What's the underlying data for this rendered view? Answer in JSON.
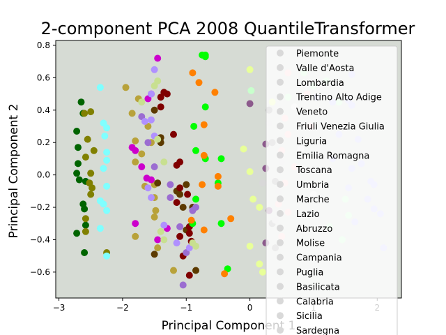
{
  "chart_data": {
    "type": "scatter",
    "title": "2-component PCA 2008 QuantileTransformer",
    "xlabel": "Principal Component 1",
    "ylabel": "Principal Component 2",
    "xlim": [
      -3.05,
      2.38
    ],
    "ylim": [
      -0.76,
      0.83
    ],
    "xticks": [
      -3,
      -2,
      -1,
      0,
      1,
      2
    ],
    "yticks": [
      -0.6,
      -0.4,
      -0.2,
      0.0,
      0.2,
      0.4,
      0.6,
      0.8
    ],
    "ytick_labels": [
      "−0.6",
      "−0.4",
      "−0.2",
      "0.0",
      "0.2",
      "0.4",
      "0.6",
      "0.8"
    ],
    "xtick_labels": [
      "−3",
      "−2",
      "−1",
      "0",
      "1",
      "2"
    ],
    "plot_background": "#d6dbd4",
    "legend_position": "right",
    "series": [
      {
        "name": "Piemonte",
        "color": "#006400",
        "points": [
          [
            -2.72,
            0.27
          ],
          [
            -2.7,
            0.17
          ],
          [
            -2.65,
            0.45
          ],
          [
            -2.62,
            0.38
          ],
          [
            -2.7,
            0.07
          ],
          [
            -2.72,
            0.01
          ],
          [
            -2.68,
            -0.03
          ],
          [
            -2.58,
            -0.04
          ],
          [
            -2.6,
            -0.21
          ],
          [
            -2.62,
            -0.18
          ],
          [
            -2.58,
            -0.31
          ],
          [
            -2.72,
            -0.36
          ],
          [
            -2.6,
            -0.48
          ]
        ]
      },
      {
        "name": "Valle d'Aosta",
        "color": "#808000",
        "points": [
          [
            -2.6,
            0.38
          ],
          [
            -2.5,
            0.39
          ],
          [
            -2.55,
            0.22
          ],
          [
            -2.45,
            0.15
          ],
          [
            -2.58,
            0.11
          ],
          [
            -2.5,
            0.01
          ],
          [
            -2.52,
            -0.05
          ],
          [
            -2.48,
            -0.08
          ],
          [
            -2.5,
            -0.12
          ],
          [
            -2.58,
            -0.27
          ],
          [
            -2.58,
            -0.35
          ],
          [
            -2.25,
            -0.48
          ]
        ]
      },
      {
        "name": "Lombardia",
        "color": "#b8a23a",
        "points": [
          [
            -1.95,
            0.54
          ],
          [
            -1.75,
            0.47
          ],
          [
            -1.85,
            0.38
          ],
          [
            -1.8,
            0.21
          ],
          [
            -1.7,
            0.13
          ],
          [
            -1.8,
            0.08
          ],
          [
            -1.65,
            -0.07
          ],
          [
            -1.5,
            -0.06
          ],
          [
            -1.5,
            -0.14
          ],
          [
            -1.48,
            -0.22
          ],
          [
            -1.5,
            -0.26
          ],
          [
            -1.45,
            -0.45
          ],
          [
            -1.8,
            -0.38
          ],
          [
            -1.2,
            -0.59
          ],
          [
            -1.6,
            0.3
          ],
          [
            -1.55,
            0.2
          ]
        ]
      },
      {
        "name": "Trentino Alto Adige",
        "color": "#5c3a00",
        "points": [
          [
            -1.5,
            0.4
          ],
          [
            -1.4,
            0.23
          ],
          [
            -1.4,
            0.2
          ],
          [
            -1.45,
            -0.05
          ],
          [
            -1.15,
            -0.1
          ],
          [
            -1.1,
            -0.12
          ],
          [
            -1.05,
            -0.2
          ],
          [
            -1.0,
            -0.34
          ],
          [
            -0.85,
            -0.59
          ],
          [
            -0.9,
            -0.2
          ],
          [
            -1.0,
            -0.06
          ],
          [
            -1.5,
            -0.49
          ]
        ]
      },
      {
        "name": "Veneto",
        "color": "#7f0000",
        "points": [
          [
            -1.4,
            0.48
          ],
          [
            -1.35,
            0.51
          ],
          [
            -1.3,
            0.5
          ],
          [
            -1.4,
            0.42
          ],
          [
            -1.2,
            0.25
          ],
          [
            -1.1,
            0.08
          ],
          [
            -1.15,
            0.06
          ],
          [
            -1.1,
            -0.08
          ],
          [
            -1.15,
            -0.17
          ],
          [
            -0.98,
            -0.12
          ],
          [
            -0.95,
            -0.32
          ],
          [
            -0.95,
            -0.36
          ],
          [
            -0.92,
            -0.41
          ],
          [
            -1.1,
            -0.38
          ],
          [
            -1.05,
            -0.5
          ],
          [
            -0.95,
            -0.62
          ]
        ]
      },
      {
        "name": "Friuli Venezia Giulia",
        "color": "#00ff00",
        "points": [
          [
            -0.75,
            0.74
          ],
          [
            -0.7,
            0.74
          ],
          [
            -0.7,
            0.73
          ],
          [
            -0.7,
            0.42
          ],
          [
            -0.88,
            0.3
          ],
          [
            -0.85,
            0.15
          ],
          [
            -0.7,
            0.1
          ],
          [
            -0.45,
            0.1
          ],
          [
            -0.85,
            -0.15
          ],
          [
            -0.5,
            -0.05
          ],
          [
            -0.9,
            -0.3
          ],
          [
            -0.35,
            -0.58
          ],
          [
            -0.45,
            -0.3
          ]
        ]
      },
      {
        "name": "Liguria",
        "color": "#ff8000",
        "points": [
          [
            -0.9,
            0.63
          ],
          [
            -0.8,
            0.57
          ],
          [
            -0.55,
            0.51
          ],
          [
            -0.72,
            0.31
          ],
          [
            -0.72,
            0.12
          ],
          [
            -0.5,
            -0.01
          ],
          [
            -0.75,
            -0.06
          ],
          [
            -0.5,
            -0.07
          ],
          [
            -0.72,
            -0.34
          ],
          [
            -0.3,
            -0.27
          ],
          [
            -0.4,
            -0.61
          ],
          [
            -0.92,
            -0.28
          ]
        ]
      },
      {
        "name": "Emilia Romagna",
        "color": "#cc00cc",
        "points": [
          [
            -1.45,
            0.72
          ],
          [
            -1.55,
            0.5
          ],
          [
            -1.6,
            0.47
          ],
          [
            -1.85,
            0.17
          ],
          [
            -1.8,
            0.15
          ],
          [
            -1.7,
            0.05
          ],
          [
            -1.62,
            -0.02
          ],
          [
            -1.55,
            -0.03
          ],
          [
            -1.3,
            -0.33
          ],
          [
            -1.8,
            -0.3
          ],
          [
            -1.45,
            -0.4
          ]
        ]
      },
      {
        "name": "Toscana",
        "color": "#9b6dd1",
        "points": [
          [
            -1.7,
            0.36
          ],
          [
            -1.6,
            0.2
          ],
          [
            -1.5,
            0.05
          ],
          [
            -1.25,
            -0.06
          ],
          [
            -1.25,
            -0.14
          ],
          [
            -1.1,
            -0.32
          ],
          [
            -1.0,
            -0.48
          ],
          [
            -1.05,
            -0.68
          ],
          [
            -0.9,
            -0.22
          ],
          [
            -0.85,
            -0.2
          ]
        ]
      },
      {
        "name": "Umbria",
        "color": "#b090ff",
        "points": [
          [
            -1.5,
            0.65
          ],
          [
            -1.55,
            0.5
          ],
          [
            -1.65,
            0.33
          ],
          [
            -1.55,
            0.34
          ],
          [
            -1.5,
            0.24
          ],
          [
            -1.6,
            -0.08
          ],
          [
            -1.55,
            -0.14
          ],
          [
            -1.35,
            -0.31
          ],
          [
            -1.15,
            -0.42
          ],
          [
            -0.95,
            -0.45
          ]
        ]
      },
      {
        "name": "Marche",
        "color": "#c8e090",
        "points": [
          [
            -1.7,
            0.45
          ],
          [
            -1.45,
            0.22
          ],
          [
            -1.35,
            0.08
          ],
          [
            -1.4,
            -0.35
          ],
          [
            -1.35,
            -0.4
          ],
          [
            -0.9,
            -0.42
          ],
          [
            -0.85,
            -0.44
          ],
          [
            -1.5,
            0.55
          ],
          [
            -1.45,
            0.58
          ]
        ]
      },
      {
        "name": "Lazio",
        "color": "#80ffff",
        "points": [
          [
            -2.35,
            0.54
          ],
          [
            -2.3,
            0.32
          ],
          [
            -2.25,
            0.29
          ],
          [
            -2.25,
            0.14
          ],
          [
            -2.25,
            0.09
          ],
          [
            -2.3,
            0.04
          ],
          [
            -2.25,
            -0.07
          ],
          [
            -2.35,
            -0.16
          ],
          [
            -2.3,
            -0.18
          ],
          [
            -2.25,
            -0.22
          ],
          [
            -2.35,
            -0.33
          ],
          [
            -2.25,
            -0.5
          ],
          [
            -2.28,
            0.24
          ]
        ]
      },
      {
        "name": "Abruzzo",
        "color": "#ffcccc",
        "points": [
          [
            0.6,
            0.63
          ],
          [
            0.9,
            0.5
          ],
          [
            0.55,
            0.35
          ],
          [
            0.95,
            0.3
          ],
          [
            0.6,
            0.25
          ],
          [
            0.5,
            0.15
          ],
          [
            0.7,
            0.05
          ],
          [
            0.55,
            -0.05
          ],
          [
            0.6,
            -0.23
          ],
          [
            0.45,
            -0.18
          ],
          [
            0.5,
            -0.38
          ]
        ]
      },
      {
        "name": "Molise",
        "color": "#a0a0a0",
        "points": [
          [
            0.3,
            0.4
          ],
          [
            0.35,
            0.2
          ],
          [
            0.4,
            -0.04
          ],
          [
            0.35,
            -0.3
          ],
          [
            0.4,
            -0.45
          ]
        ]
      },
      {
        "name": "Campania",
        "color": "#8c5a8c",
        "points": [
          [
            0.0,
            0.44
          ],
          [
            0.25,
            0.19
          ],
          [
            0.25,
            0.04
          ],
          [
            0.3,
            -0.22
          ],
          [
            0.25,
            -0.42
          ]
        ]
      },
      {
        "name": "Puglia",
        "color": "#e8ff99",
        "points": [
          [
            0.0,
            0.65
          ],
          [
            -0.1,
            0.16
          ],
          [
            0.0,
            0.02
          ],
          [
            0.05,
            -0.15
          ],
          [
            0.15,
            -0.2
          ],
          [
            0.0,
            -0.44
          ],
          [
            0.15,
            -0.55
          ],
          [
            0.2,
            -0.6
          ],
          [
            0.35,
            0.45
          ]
        ]
      },
      {
        "name": "Basilicata",
        "color": "#c8ffcc",
        "points": [
          [
            0.85,
            0.63
          ],
          [
            1.0,
            0.55
          ],
          [
            1.2,
            0.58
          ],
          [
            1.4,
            0.45
          ],
          [
            1.5,
            -0.15
          ],
          [
            1.55,
            -0.25
          ],
          [
            1.25,
            -0.32
          ],
          [
            1.45,
            -0.4
          ],
          [
            0.6,
            0.48
          ],
          [
            0.02,
            0.52
          ]
        ]
      },
      {
        "name": "Calabria",
        "color": "#c8c8ff",
        "points": [
          [
            1.05,
            0.48
          ],
          [
            1.3,
            0.45
          ],
          [
            1.55,
            0.46
          ],
          [
            1.6,
            0.43
          ],
          [
            1.6,
            0.62
          ],
          [
            1.4,
            0.25
          ],
          [
            1.7,
            0.22
          ],
          [
            1.6,
            0.04
          ],
          [
            1.75,
            0.07
          ],
          [
            1.55,
            -0.08
          ],
          [
            1.9,
            -0.04
          ],
          [
            1.95,
            -0.06
          ],
          [
            1.85,
            -0.15
          ],
          [
            1.95,
            -0.21
          ],
          [
            2.05,
            -0.24
          ],
          [
            1.65,
            -0.29
          ],
          [
            2.1,
            -0.45
          ],
          [
            1.3,
            0.1
          ]
        ]
      },
      {
        "name": "Sicilia",
        "color": "#d8d8d8",
        "points": [
          [
            0.3,
            0.32
          ],
          [
            0.5,
            0.08
          ],
          [
            0.45,
            -0.1
          ],
          [
            0.2,
            -0.05
          ],
          [
            0.4,
            -0.28
          ]
        ]
      },
      {
        "name": "Sardegna",
        "color": "#eaeaea",
        "points": [
          [
            0.8,
            0.16
          ],
          [
            0.9,
            0.03
          ],
          [
            1.0,
            -0.12
          ],
          [
            0.85,
            -0.34
          ],
          [
            0.7,
            0.42
          ]
        ]
      }
    ]
  }
}
